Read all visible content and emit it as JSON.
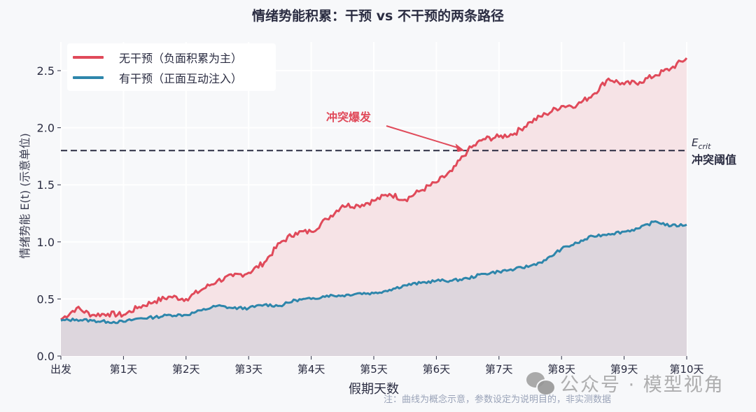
{
  "title": "情绪势能积累：干预 vs 不干预的两条路径",
  "legend": [
    {
      "label": "无干预（负面积累为主）",
      "color": "#e04a5a"
    },
    {
      "label": "有干预（正面互动注入）",
      "color": "#2e86ab"
    }
  ],
  "axes": {
    "ylabel": "情绪势能  E(t)  (示意单位)",
    "xlabel": "假期天数",
    "yticks": [
      "0.0",
      "0.5",
      "1.0",
      "1.5",
      "2.0",
      "2.5"
    ],
    "xticks": [
      "出发",
      "第1天",
      "第2天",
      "第3天",
      "第4天",
      "第5天",
      "第6天",
      "第7天",
      "第8天",
      "第9天",
      "第10天"
    ]
  },
  "threshold": {
    "value": 1.8,
    "symbol": "E",
    "subscript": "crit",
    "label": "冲突阈值"
  },
  "annotation": {
    "text": "冲突爆发",
    "point_day": 6.45,
    "point_value": 1.8
  },
  "note": "注：曲线为概念示意，参数设定为说明目的，非实测数据",
  "watermark": "公众号 · 模型视角",
  "colors": {
    "no_intervention": "#e04a5a",
    "no_intervention_fill": "#f6e3e6",
    "intervention": "#2e86ab",
    "intervention_fill": "#ddd6dd",
    "threshold": "#2b2d42",
    "background": "#f7f8fa",
    "grid": "#ffffff"
  },
  "chart_data": {
    "type": "area",
    "title": "情绪势能积累：干预 vs 不干预的两条路径",
    "xlabel": "假期天数",
    "ylabel": "情绪势能 E(t) (示意单位)",
    "xlim": [
      0,
      10
    ],
    "ylim": [
      0,
      2.75
    ],
    "grid": true,
    "legend_position": "upper left",
    "x_tick_labels": [
      "出发",
      "第1天",
      "第2天",
      "第3天",
      "第4天",
      "第5天",
      "第6天",
      "第7天",
      "第8天",
      "第9天",
      "第10天"
    ],
    "x": [
      0,
      0.25,
      0.5,
      0.75,
      1,
      1.25,
      1.5,
      1.75,
      2,
      2.25,
      2.5,
      2.75,
      3,
      3.25,
      3.5,
      3.75,
      4,
      4.25,
      4.5,
      4.75,
      5,
      5.25,
      5.5,
      5.75,
      6,
      6.25,
      6.5,
      6.75,
      7,
      7.25,
      7.5,
      7.75,
      8,
      8.25,
      8.5,
      8.75,
      9,
      9.25,
      9.5,
      9.75,
      10
    ],
    "series": [
      {
        "name": "无干预（负面积累为主）",
        "values": [
          0.32,
          0.42,
          0.36,
          0.37,
          0.36,
          0.43,
          0.48,
          0.52,
          0.5,
          0.58,
          0.66,
          0.7,
          0.73,
          0.82,
          0.99,
          1.08,
          1.09,
          1.2,
          1.32,
          1.32,
          1.36,
          1.42,
          1.37,
          1.45,
          1.52,
          1.62,
          1.8,
          1.9,
          1.92,
          1.95,
          2.05,
          2.12,
          2.19,
          2.2,
          2.29,
          2.43,
          2.38,
          2.4,
          2.46,
          2.52,
          2.61
        ]
      },
      {
        "name": "有干预（正面互动注入）",
        "values": [
          0.31,
          0.32,
          0.31,
          0.3,
          0.3,
          0.33,
          0.34,
          0.36,
          0.36,
          0.4,
          0.44,
          0.42,
          0.42,
          0.45,
          0.44,
          0.49,
          0.5,
          0.53,
          0.53,
          0.55,
          0.55,
          0.58,
          0.62,
          0.64,
          0.66,
          0.66,
          0.68,
          0.72,
          0.74,
          0.76,
          0.79,
          0.84,
          0.94,
          0.99,
          1.05,
          1.07,
          1.09,
          1.12,
          1.18,
          1.14,
          1.15
        ]
      }
    ],
    "threshold_line": {
      "y": 1.8,
      "label": "E_crit 冲突阈值",
      "style": "dashed"
    },
    "annotations": [
      {
        "text": "冲突爆发",
        "x": 6.45,
        "y": 1.8
      }
    ]
  }
}
